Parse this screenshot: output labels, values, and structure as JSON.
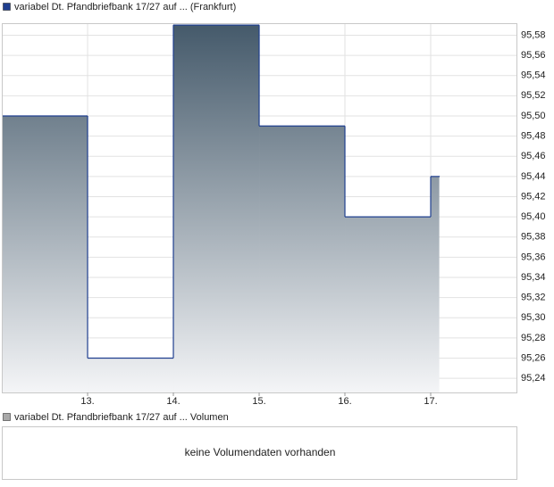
{
  "chart_data": [
    {
      "type": "step",
      "series": [
        {
          "name": "variabel Dt. Pfandbriefbank 17/27 auf ... (Frankfurt)",
          "color": "#1f3f8f",
          "values": [
            95.5,
            95.26,
            95.59,
            95.49,
            95.4,
            95.44,
            95.44
          ]
        }
      ],
      "x": [
        12.01,
        13,
        14,
        15,
        16,
        17,
        17.1
      ],
      "xlim": [
        12.01,
        18.0
      ],
      "xticks": [
        {
          "value": 13,
          "label": "13."
        },
        {
          "value": 14,
          "label": "14."
        },
        {
          "value": 15,
          "label": "15."
        },
        {
          "value": 16,
          "label": "16."
        },
        {
          "value": 17,
          "label": "17."
        }
      ],
      "ylim": [
        95.226,
        95.591
      ],
      "yticks": [
        {
          "value": 95.24,
          "label": "95,24"
        },
        {
          "value": 95.26,
          "label": "95,26"
        },
        {
          "value": 95.28,
          "label": "95,28"
        },
        {
          "value": 95.3,
          "label": "95,30"
        },
        {
          "value": 95.32,
          "label": "95,32"
        },
        {
          "value": 95.34,
          "label": "95,34"
        },
        {
          "value": 95.36,
          "label": "95,36"
        },
        {
          "value": 95.38,
          "label": "95,38"
        },
        {
          "value": 95.4,
          "label": "95,40"
        },
        {
          "value": 95.42,
          "label": "95,42"
        },
        {
          "value": 95.44,
          "label": "95,44"
        },
        {
          "value": 95.46,
          "label": "95,46"
        },
        {
          "value": 95.48,
          "label": "95,48"
        },
        {
          "value": 95.5,
          "label": "95,50"
        },
        {
          "value": 95.52,
          "label": "95,52"
        },
        {
          "value": 95.54,
          "label": "95,54"
        },
        {
          "value": 95.56,
          "label": "95,56"
        },
        {
          "value": 95.58,
          "label": "95,58"
        }
      ],
      "grid": true,
      "area_gradient": [
        "#44596a",
        "#f4f5f7"
      ]
    },
    {
      "type": "bar",
      "series": [
        {
          "name": "variabel Dt. Pfandbriefbank 17/27 auf ... Volumen",
          "color": "#a9a9a9"
        }
      ],
      "message": "keine Volumendaten vorhanden"
    }
  ]
}
